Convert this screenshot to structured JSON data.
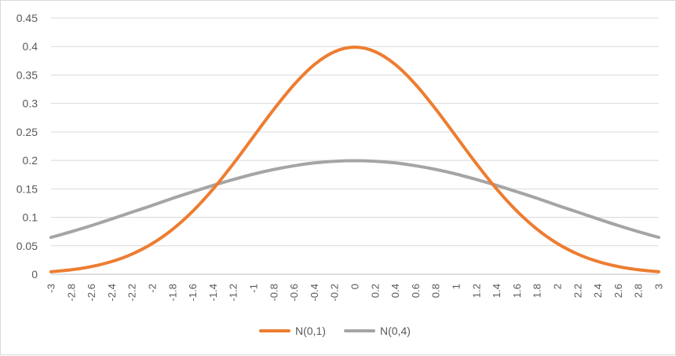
{
  "chart_data": {
    "type": "line",
    "title": "",
    "xlabel": "",
    "ylabel": "",
    "x_ticks": [
      "-3",
      "-2.8",
      "-2.6",
      "-2.4",
      "-2.2",
      "-2",
      "-1.8",
      "-1.6",
      "-1.4",
      "-1.2",
      "-1",
      "-0.8",
      "-0.6",
      "-0.4",
      "-0.2",
      "0",
      "0.2",
      "0.4",
      "0.6",
      "0.8",
      "1",
      "1.2",
      "1.4",
      "1.6",
      "1.8",
      "2",
      "2.2",
      "2.4",
      "2.6",
      "2.8",
      "3"
    ],
    "y_ticks": [
      "0",
      "0.05",
      "0.1",
      "0.15",
      "0.2",
      "0.25",
      "0.3",
      "0.35",
      "0.4",
      "0.45"
    ],
    "xlim": [
      -3,
      3
    ],
    "ylim": [
      0,
      0.45
    ],
    "grid": "horizontal",
    "legend_position": "bottom",
    "x": [
      -3,
      -2.8,
      -2.6,
      -2.4,
      -2.2,
      -2,
      -1.8,
      -1.6,
      -1.4,
      -1.2,
      -1,
      -0.8,
      -0.6,
      -0.4,
      -0.2,
      0,
      0.2,
      0.4,
      0.6,
      0.8,
      1,
      1.2,
      1.4,
      1.6,
      1.8,
      2,
      2.2,
      2.4,
      2.6,
      2.8,
      3
    ],
    "series": [
      {
        "name": "N(0,1)",
        "color": "#ed7d31",
        "values": [
          0.0044,
          0.0079,
          0.0136,
          0.0224,
          0.0355,
          0.054,
          0.079,
          0.1109,
          0.1497,
          0.1942,
          0.242,
          0.2897,
          0.3332,
          0.3683,
          0.391,
          0.3989,
          0.391,
          0.3683,
          0.3332,
          0.2897,
          0.242,
          0.1942,
          0.1497,
          0.1109,
          0.079,
          0.054,
          0.0355,
          0.0224,
          0.0136,
          0.0079,
          0.0044
        ]
      },
      {
        "name": "N(0,4)",
        "color": "#a5a5a5",
        "values": [
          0.0648,
          0.0748,
          0.0856,
          0.0972,
          0.1092,
          0.121,
          0.1334,
          0.1449,
          0.1561,
          0.1664,
          0.176,
          0.1841,
          0.1906,
          0.1956,
          0.1985,
          0.1995,
          0.1985,
          0.1956,
          0.1906,
          0.1841,
          0.176,
          0.1664,
          0.1561,
          0.1449,
          0.1334,
          0.121,
          0.1092,
          0.0972,
          0.0856,
          0.0748,
          0.0648
        ]
      }
    ]
  }
}
